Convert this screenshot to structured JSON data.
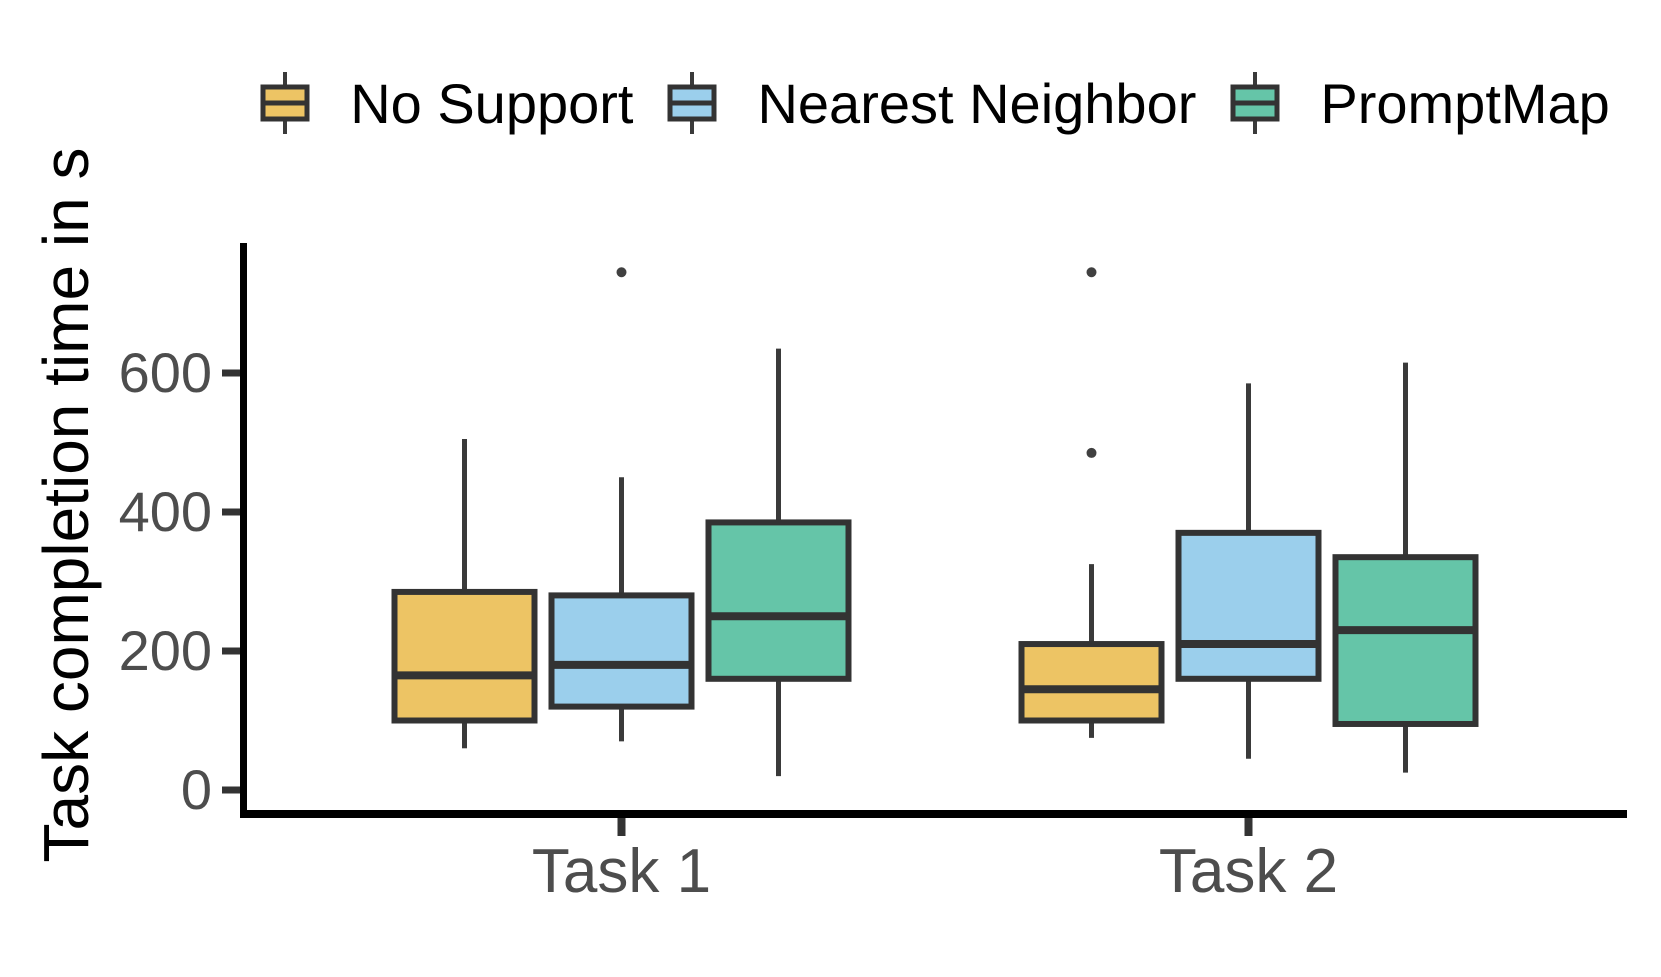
{
  "chart_data": {
    "type": "boxplot",
    "title": "",
    "xlabel": "",
    "ylabel": "Task completion time in s",
    "categories": [
      "Task 1",
      "Task 2"
    ],
    "yticks": [
      0,
      200,
      400,
      600
    ],
    "ylim": [
      0,
      790
    ],
    "grid": false,
    "legend_position": "top",
    "legend_key": "boxplot-glyph",
    "series": [
      {
        "name": "No Support",
        "color": "#EDC464",
        "boxes": [
          {
            "category": "Task 1",
            "whisker_low": 60,
            "q1": 100,
            "median": 165,
            "q3": 285,
            "whisker_high": 505,
            "outliers": []
          },
          {
            "category": "Task 2",
            "whisker_low": 75,
            "q1": 100,
            "median": 145,
            "q3": 210,
            "whisker_high": 325,
            "outliers": [
              485,
              745
            ]
          }
        ]
      },
      {
        "name": "Nearest Neighbor",
        "color": "#9BCFEC",
        "boxes": [
          {
            "category": "Task 1",
            "whisker_low": 70,
            "q1": 120,
            "median": 180,
            "q3": 280,
            "whisker_high": 450,
            "outliers": [
              745
            ]
          },
          {
            "category": "Task 2",
            "whisker_low": 45,
            "q1": 160,
            "median": 210,
            "q3": 370,
            "whisker_high": 585,
            "outliers": []
          }
        ]
      },
      {
        "name": "PromptMap",
        "color": "#65C5A8",
        "boxes": [
          {
            "category": "Task 1",
            "whisker_low": 20,
            "q1": 160,
            "median": 250,
            "q3": 385,
            "whisker_high": 635,
            "outliers": []
          },
          {
            "category": "Task 2",
            "whisker_low": 25,
            "q1": 95,
            "median": 230,
            "q3": 335,
            "whisker_high": 615,
            "outliers": []
          }
        ]
      }
    ],
    "style": {
      "box_border_color": "#333333",
      "median_color": "#333333",
      "whisker_color": "#3A3A3A",
      "axis_color": "#000000",
      "tick_color": "#333333",
      "tick_label_color": "#4D4D4D",
      "outlier_color": "#404040",
      "background": "#FFFFFF"
    }
  }
}
